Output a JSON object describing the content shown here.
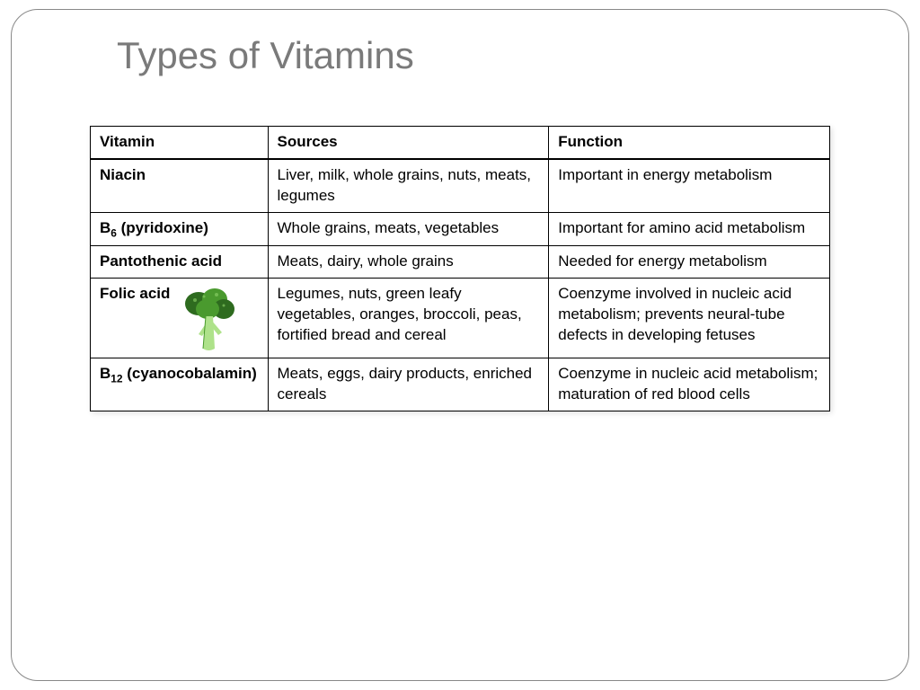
{
  "title": "Types of Vitamins",
  "columns": [
    "Vitamin",
    "Sources",
    "Function"
  ],
  "rows": [
    {
      "vitamin_html": "Niacin",
      "sources": "Liver, milk, whole grains, nuts, meats, legumes",
      "function": "Important in energy metabolism",
      "has_icon": false
    },
    {
      "vitamin_html": "B<sub>6</sub> (pyridoxine)",
      "sources": "Whole grains, meats, vegetables",
      "function": "Important for amino acid metabolism",
      "has_icon": false
    },
    {
      "vitamin_html": "Pantothenic acid",
      "sources": "Meats, dairy, whole grains",
      "function": "Needed for energy metabolism",
      "has_icon": false
    },
    {
      "vitamin_html": "Folic acid",
      "sources": "Legumes, nuts, green leafy vegetables, oranges, broccoli, peas, fortified bread and cereal",
      "function": "Coenzyme involved in nucleic acid metabolism; prevents neural-tube defects in developing fetuses",
      "has_icon": true
    },
    {
      "vitamin_html": "B<sub>12</sub> (cyanocobalamin)",
      "sources": "Meats, eggs, dairy products, enriched cereals",
      "function": "Coenzyme in nucleic acid metabolism; maturation of red blood cells",
      "has_icon": false
    }
  ],
  "style": {
    "title_color": "#7a7a7a",
    "title_fontsize": 42,
    "border_color": "#000000",
    "header_border_bottom_width": 2.5,
    "cell_fontsize": 17,
    "frame_border_color": "#888888",
    "frame_radius": 30,
    "col_widths_pct": [
      24,
      38,
      38
    ],
    "shadow": "2px 2px 6px rgba(0,0,0,0.12)",
    "icon_colors": {
      "dark": "#2e6b1f",
      "mid": "#4a9a2e",
      "light": "#8fd36a",
      "stem": "#aee28a"
    }
  }
}
